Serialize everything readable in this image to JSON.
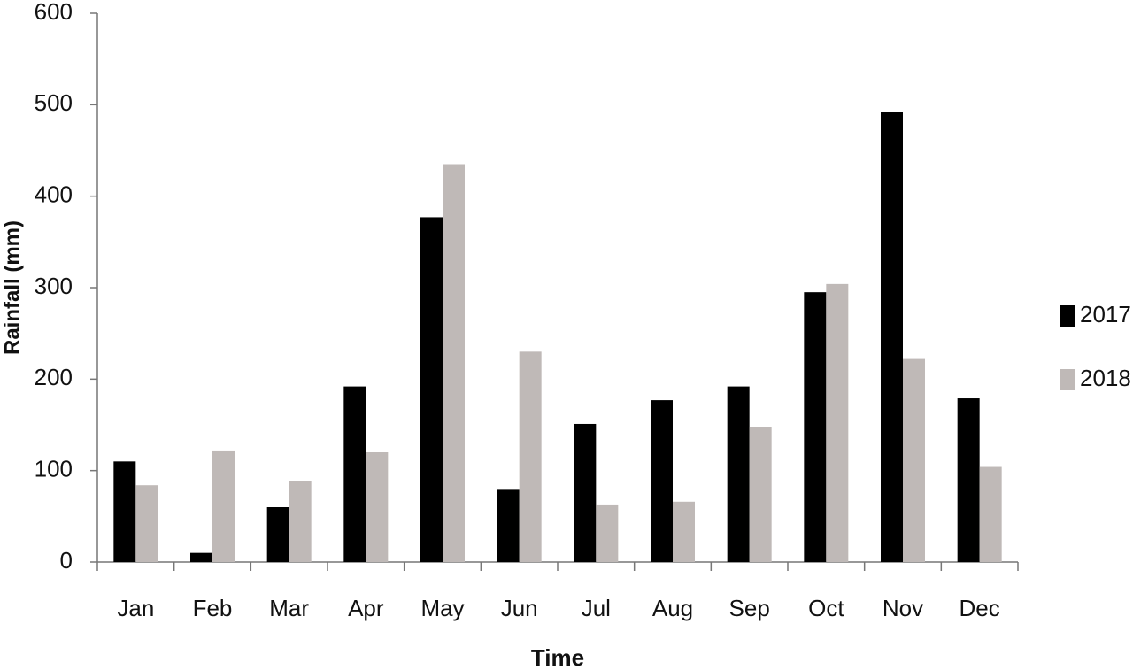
{
  "chart_data": {
    "type": "bar",
    "y_label": "Rainfall (mm)",
    "x_label": "Time",
    "categories": [
      "Jan",
      "Feb",
      "Mar",
      "Apr",
      "May",
      "Jun",
      "Jul",
      "Aug",
      "Sep",
      "Oct",
      "Nov",
      "Dec"
    ],
    "series": [
      {
        "name": "2017",
        "color": "#000000",
        "values": [
          110,
          10,
          60,
          192,
          377,
          79,
          151,
          177,
          192,
          295,
          492,
          179
        ]
      },
      {
        "name": "2018",
        "color": "#bfb9b7",
        "values": [
          84,
          122,
          89,
          120,
          435,
          230,
          62,
          66,
          148,
          304,
          222,
          104
        ]
      }
    ],
    "ylim": [
      0,
      600
    ],
    "yticks": [
      0,
      100,
      200,
      300,
      400,
      500,
      600
    ],
    "grid": false,
    "legend": "right"
  }
}
